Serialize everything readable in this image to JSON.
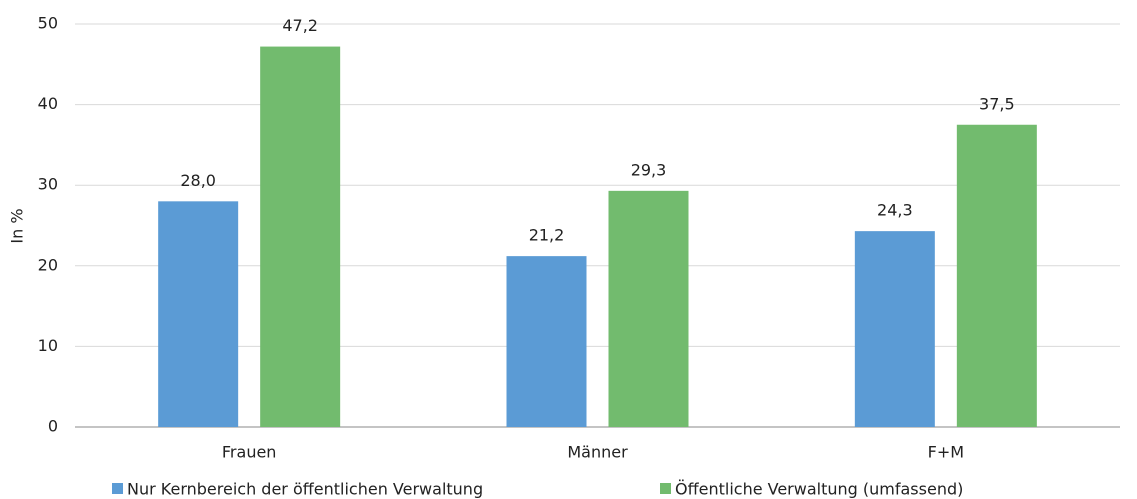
{
  "chart_data": {
    "type": "bar",
    "y_label": "In %",
    "categories": [
      "Frauen",
      "Männer",
      "F+M"
    ],
    "series": [
      {
        "name": "Nur Kernbereich der öffentlichen Verwaltung",
        "color": "#5b9bd5",
        "values": [
          28.0,
          21.2,
          24.3
        ],
        "value_labels": [
          "28,0",
          "21,2",
          "24,3"
        ]
      },
      {
        "name": "Öffentliche Verwaltung (umfassend)",
        "color": "#72bb6e",
        "values": [
          47.2,
          29.3,
          37.5
        ],
        "value_labels": [
          "47,2",
          "29,3",
          "37,5"
        ]
      }
    ],
    "ylim": [
      0,
      50
    ],
    "yticks": [
      0,
      10,
      20,
      30,
      40,
      50
    ],
    "grid": true,
    "legend": "bottom"
  }
}
